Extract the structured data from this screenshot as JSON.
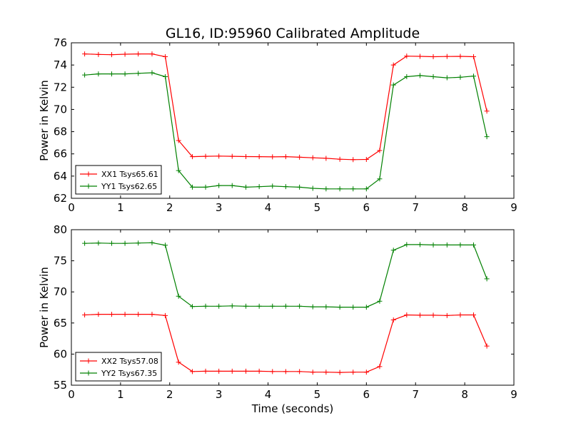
{
  "chart_data": [
    {
      "type": "line",
      "title": "GL16, ID:95960 Calibrated Amplitude",
      "xlabel": "",
      "ylabel": "Power in Kelvin",
      "xlim": [
        0,
        9
      ],
      "ylim": [
        62,
        76
      ],
      "xticks": [
        0,
        1,
        2,
        3,
        4,
        5,
        6,
        7,
        8,
        9
      ],
      "yticks": [
        62,
        64,
        66,
        68,
        70,
        72,
        74,
        76
      ],
      "legend_position": "lower-left",
      "x": [
        0.27,
        0.55,
        0.82,
        1.09,
        1.36,
        1.64,
        1.91,
        2.18,
        2.46,
        2.73,
        3.0,
        3.27,
        3.55,
        3.82,
        4.09,
        4.36,
        4.64,
        4.91,
        5.18,
        5.46,
        5.73,
        6.0,
        6.27,
        6.55,
        6.82,
        7.09,
        7.36,
        7.64,
        7.91,
        8.18,
        8.45
      ],
      "series": [
        {
          "name": "XX1 Tsys65.61",
          "color": "#ff0000",
          "values": [
            75.0,
            74.95,
            74.93,
            74.97,
            75.0,
            75.0,
            74.75,
            67.2,
            65.75,
            65.78,
            65.8,
            65.78,
            65.76,
            65.75,
            65.73,
            65.75,
            65.7,
            65.65,
            65.6,
            65.52,
            65.48,
            65.5,
            66.3,
            74.0,
            74.8,
            74.78,
            74.75,
            74.77,
            74.78,
            74.75,
            69.85
          ]
        },
        {
          "name": "YY1 Tsys62.65",
          "color": "#008000",
          "values": [
            73.1,
            73.2,
            73.2,
            73.2,
            73.25,
            73.3,
            72.95,
            64.5,
            63.0,
            63.0,
            63.15,
            63.15,
            63.0,
            63.05,
            63.1,
            63.05,
            63.0,
            62.9,
            62.85,
            62.85,
            62.85,
            62.85,
            63.75,
            72.2,
            72.95,
            73.05,
            72.95,
            72.85,
            72.9,
            73.0,
            67.55
          ]
        }
      ]
    },
    {
      "type": "line",
      "title": "",
      "xlabel": "Time (seconds)",
      "ylabel": "Power in Kelvin",
      "xlim": [
        0,
        9
      ],
      "ylim": [
        55,
        80
      ],
      "xticks": [
        0,
        1,
        2,
        3,
        4,
        5,
        6,
        7,
        8,
        9
      ],
      "yticks": [
        55,
        60,
        65,
        70,
        75,
        80
      ],
      "legend_position": "lower-left",
      "x": [
        0.27,
        0.55,
        0.82,
        1.09,
        1.36,
        1.64,
        1.91,
        2.18,
        2.46,
        2.73,
        3.0,
        3.27,
        3.55,
        3.82,
        4.09,
        4.36,
        4.64,
        4.91,
        5.18,
        5.46,
        5.73,
        6.0,
        6.27,
        6.55,
        6.82,
        7.09,
        7.36,
        7.64,
        7.91,
        8.18,
        8.45
      ],
      "series": [
        {
          "name": "XX2 Tsys57.08",
          "color": "#ff0000",
          "values": [
            66.3,
            66.4,
            66.4,
            66.4,
            66.4,
            66.4,
            66.2,
            58.7,
            57.2,
            57.25,
            57.25,
            57.25,
            57.25,
            57.25,
            57.2,
            57.2,
            57.2,
            57.1,
            57.1,
            57.05,
            57.1,
            57.1,
            58.0,
            65.5,
            66.3,
            66.25,
            66.25,
            66.2,
            66.3,
            66.3,
            61.3
          ]
        },
        {
          "name": "YY2 Tsys67.35",
          "color": "#008000",
          "values": [
            77.8,
            77.85,
            77.8,
            77.8,
            77.85,
            77.9,
            77.5,
            69.3,
            67.65,
            67.7,
            67.7,
            67.75,
            67.7,
            67.7,
            67.7,
            67.7,
            67.7,
            67.6,
            67.6,
            67.55,
            67.55,
            67.55,
            68.5,
            76.7,
            77.6,
            77.6,
            77.55,
            77.55,
            77.55,
            77.55,
            72.1
          ]
        }
      ]
    }
  ]
}
